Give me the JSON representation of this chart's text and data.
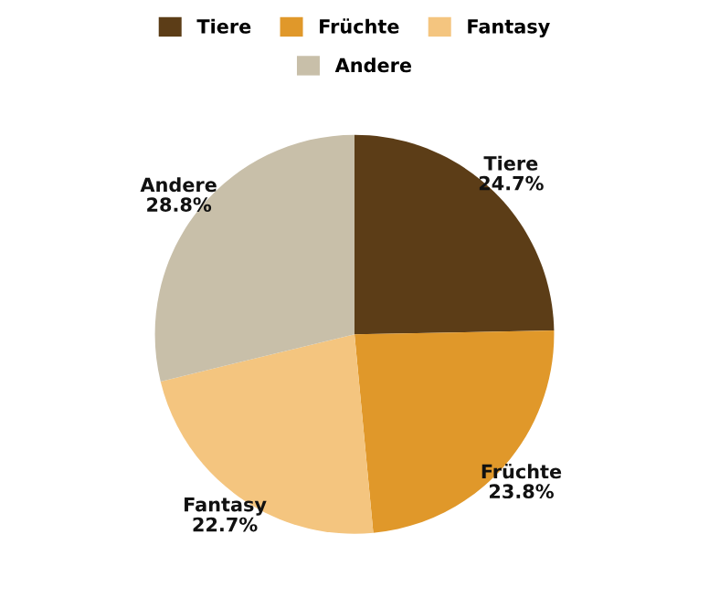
{
  "chart_data": {
    "type": "pie",
    "categories": [
      "Tiere",
      "Früchte",
      "Fantasy",
      "Andere"
    ],
    "values": [
      24.7,
      23.8,
      22.7,
      28.8
    ],
    "value_labels": [
      "24.7%",
      "23.8%",
      "22.7%",
      "28.8%"
    ],
    "colors": [
      "#5c3d17",
      "#e0982a",
      "#f4c57f",
      "#c8bfa9"
    ],
    "legend": "top"
  }
}
